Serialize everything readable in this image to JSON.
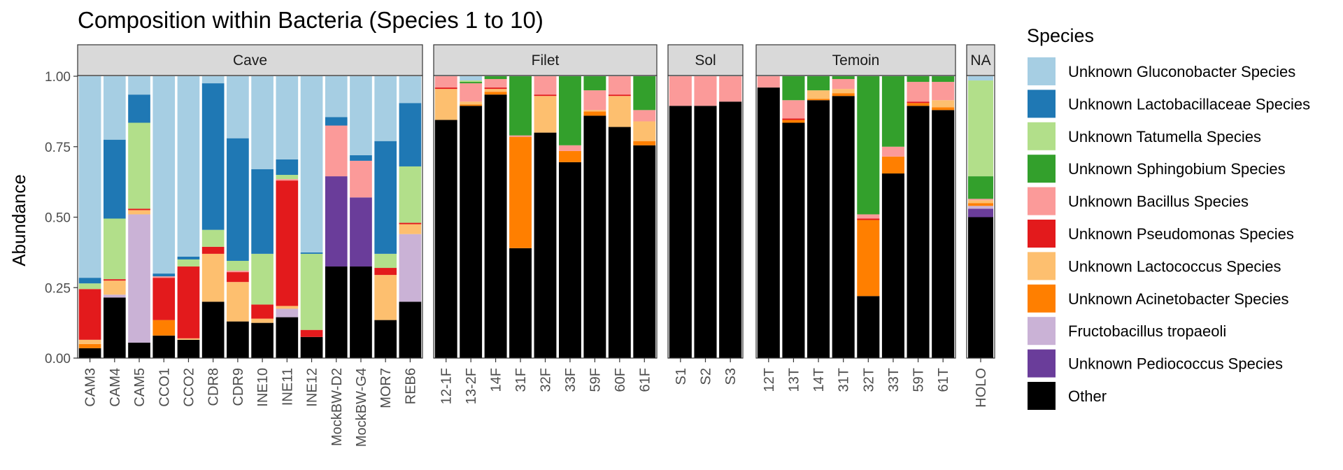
{
  "chart_data": {
    "type": "bar",
    "stacked": true,
    "title": "Composition within Bacteria (Species 1 to 10)",
    "ylabel": "Abundance",
    "xlabel": "",
    "ylim": [
      0,
      1
    ],
    "yticks": [
      "0.00",
      "0.25",
      "0.50",
      "0.75",
      "1.00"
    ],
    "legend": {
      "title": "Species",
      "position": "right",
      "entries": [
        {
          "name": "Unknown Gluconobacter Species",
          "color": "#a6cee3"
        },
        {
          "name": "Unknown Lactobacillaceae Species",
          "color": "#1f78b4"
        },
        {
          "name": "Unknown Tatumella Species",
          "color": "#b2df8a"
        },
        {
          "name": "Unknown Sphingobium Species",
          "color": "#33a02c"
        },
        {
          "name": "Unknown Bacillus Species",
          "color": "#fb9a99"
        },
        {
          "name": "Unknown Pseudomonas Species",
          "color": "#e31a1c"
        },
        {
          "name": "Unknown Lactococcus Species",
          "color": "#fdbf6f"
        },
        {
          "name": "Unknown Acinetobacter Species",
          "color": "#ff7f00"
        },
        {
          "name": "Fructobacillus tropaeoli",
          "color": "#cab2d6"
        },
        {
          "name": "Unknown Pediococcus Species",
          "color": "#6a3d9a"
        },
        {
          "name": "Other",
          "color": "#000000"
        }
      ]
    },
    "stack_order_bottom_to_top": [
      "Other",
      "Unknown Pediococcus Species",
      "Fructobacillus tropaeoli",
      "Unknown Acinetobacter Species",
      "Unknown Lactococcus Species",
      "Unknown Pseudomonas Species",
      "Unknown Bacillus Species",
      "Unknown Sphingobium Species",
      "Unknown Tatumella Species",
      "Unknown Lactobacillaceae Species",
      "Unknown Gluconobacter Species"
    ],
    "panels": [
      {
        "name": "Cave",
        "samples": [
          {
            "label": "CAM3",
            "values": {
              "Other": 0.035,
              "Unknown Lactococcus Species": 0.015,
              "Unknown Acinetobacter Species": 0.015,
              "Unknown Pseudomonas Species": 0.18,
              "Unknown Tatumella Species": 0.02,
              "Unknown Lactobacillaceae Species": 0.02,
              "Unknown Gluconobacter Species": 0.715
            }
          },
          {
            "label": "CAM4",
            "values": {
              "Other": 0.215,
              "Fructobacillus tropaeoli": 0.01,
              "Unknown Lactococcus Species": 0.05,
              "Unknown Pseudomonas Species": 0.005,
              "Unknown Tatumella Species": 0.215,
              "Unknown Lactobacillaceae Species": 0.28,
              "Unknown Gluconobacter Species": 0.225
            }
          },
          {
            "label": "CAM5",
            "values": {
              "Other": 0.055,
              "Fructobacillus tropaeoli": 0.455,
              "Unknown Lactococcus Species": 0.015,
              "Unknown Pseudomonas Species": 0.005,
              "Unknown Tatumella Species": 0.305,
              "Unknown Lactobacillaceae Species": 0.1,
              "Unknown Gluconobacter Species": 0.065
            }
          },
          {
            "label": "CCO1",
            "values": {
              "Other": 0.08,
              "Unknown Acinetobacter Species": 0.055,
              "Unknown Pseudomonas Species": 0.15,
              "Unknown Bacillus Species": 0.005,
              "Unknown Lactobacillaceae Species": 0.01,
              "Unknown Gluconobacter Species": 0.7
            }
          },
          {
            "label": "CCO2",
            "values": {
              "Other": 0.065,
              "Unknown Lactococcus Species": 0.005,
              "Unknown Pseudomonas Species": 0.255,
              "Unknown Tatumella Species": 0.025,
              "Unknown Lactobacillaceae Species": 0.01,
              "Unknown Gluconobacter Species": 0.64
            }
          },
          {
            "label": "CDR8",
            "values": {
              "Other": 0.2,
              "Unknown Lactococcus Species": 0.17,
              "Unknown Pseudomonas Species": 0.025,
              "Unknown Tatumella Species": 0.06,
              "Unknown Lactobacillaceae Species": 0.52,
              "Unknown Gluconobacter Species": 0.025
            }
          },
          {
            "label": "CDR9",
            "values": {
              "Other": 0.13,
              "Unknown Lactococcus Species": 0.14,
              "Unknown Pseudomonas Species": 0.035,
              "Unknown Bacillus Species": 0.005,
              "Unknown Tatumella Species": 0.035,
              "Unknown Lactobacillaceae Species": 0.435,
              "Unknown Gluconobacter Species": 0.22
            }
          },
          {
            "label": "INE10",
            "values": {
              "Other": 0.125,
              "Unknown Lactococcus Species": 0.015,
              "Unknown Pseudomonas Species": 0.05,
              "Unknown Tatumella Species": 0.18,
              "Unknown Lactobacillaceae Species": 0.3,
              "Unknown Gluconobacter Species": 0.33
            }
          },
          {
            "label": "INE11",
            "values": {
              "Other": 0.145,
              "Fructobacillus tropaeoli": 0.03,
              "Unknown Lactococcus Species": 0.01,
              "Unknown Pseudomonas Species": 0.445,
              "Unknown Bacillus Species": 0.005,
              "Unknown Tatumella Species": 0.015,
              "Unknown Lactobacillaceae Species": 0.055,
              "Unknown Gluconobacter Species": 0.295
            }
          },
          {
            "label": "INE12",
            "values": {
              "Other": 0.075,
              "Unknown Pseudomonas Species": 0.025,
              "Unknown Tatumella Species": 0.27,
              "Unknown Lactobacillaceae Species": 0.005,
              "Unknown Gluconobacter Species": 0.625
            }
          },
          {
            "label": "MockBW-D2",
            "values": {
              "Other": 0.325,
              "Unknown Pediococcus Species": 0.32,
              "Unknown Bacillus Species": 0.18,
              "Unknown Lactobacillaceae Species": 0.03,
              "Unknown Gluconobacter Species": 0.145
            }
          },
          {
            "label": "MockBW-G4",
            "values": {
              "Other": 0.325,
              "Unknown Pediococcus Species": 0.245,
              "Unknown Bacillus Species": 0.13,
              "Unknown Lactobacillaceae Species": 0.02,
              "Unknown Gluconobacter Species": 0.28
            }
          },
          {
            "label": "MOR7",
            "values": {
              "Other": 0.135,
              "Unknown Lactococcus Species": 0.16,
              "Unknown Pseudomonas Species": 0.025,
              "Unknown Tatumella Species": 0.05,
              "Unknown Lactobacillaceae Species": 0.4,
              "Unknown Gluconobacter Species": 0.23
            }
          },
          {
            "label": "REB6",
            "values": {
              "Other": 0.2,
              "Fructobacillus tropaeoli": 0.24,
              "Unknown Lactococcus Species": 0.035,
              "Unknown Pseudomonas Species": 0.005,
              "Unknown Tatumella Species": 0.2,
              "Unknown Lactobacillaceae Species": 0.225,
              "Unknown Gluconobacter Species": 0.095
            }
          }
        ]
      },
      {
        "name": "Filet",
        "samples": [
          {
            "label": "12-1F",
            "values": {
              "Other": 0.845,
              "Unknown Lactococcus Species": 0.11,
              "Unknown Pseudomonas Species": 0.005,
              "Unknown Bacillus Species": 0.04
            }
          },
          {
            "label": "13-2F",
            "values": {
              "Other": 0.895,
              "Unknown Acinetobacter Species": 0.005,
              "Unknown Lactococcus Species": 0.01,
              "Unknown Bacillus Species": 0.065,
              "Unknown Sphingobium Species": 0.005,
              "Unknown Tatumella Species": 0.005,
              "Unknown Gluconobacter Species": 0.015
            }
          },
          {
            "label": "14F",
            "values": {
              "Other": 0.935,
              "Unknown Acinetobacter Species": 0.01,
              "Unknown Lactococcus Species": 0.01,
              "Unknown Pseudomonas Species": 0.005,
              "Unknown Bacillus Species": 0.03,
              "Unknown Sphingobium Species": 0.01
            }
          },
          {
            "label": "31F",
            "values": {
              "Other": 0.39,
              "Unknown Acinetobacter Species": 0.395,
              "Unknown Bacillus Species": 0.005,
              "Unknown Sphingobium Species": 0.21
            }
          },
          {
            "label": "32F",
            "values": {
              "Other": 0.8,
              "Unknown Lactococcus Species": 0.13,
              "Unknown Pseudomonas Species": 0.005,
              "Unknown Bacillus Species": 0.065
            }
          },
          {
            "label": "33F",
            "values": {
              "Other": 0.695,
              "Unknown Acinetobacter Species": 0.04,
              "Unknown Bacillus Species": 0.02,
              "Unknown Sphingobium Species": 0.245
            }
          },
          {
            "label": "59F",
            "values": {
              "Other": 0.86,
              "Unknown Acinetobacter Species": 0.015,
              "Unknown Lactococcus Species": 0.005,
              "Unknown Bacillus Species": 0.07,
              "Unknown Sphingobium Species": 0.05
            }
          },
          {
            "label": "60F",
            "values": {
              "Other": 0.82,
              "Unknown Lactococcus Species": 0.11,
              "Unknown Pseudomonas Species": 0.005,
              "Unknown Bacillus Species": 0.065
            }
          },
          {
            "label": "61F",
            "values": {
              "Other": 0.755,
              "Unknown Acinetobacter Species": 0.015,
              "Unknown Lactococcus Species": 0.07,
              "Unknown Bacillus Species": 0.04,
              "Unknown Sphingobium Species": 0.12
            }
          }
        ]
      },
      {
        "name": "Sol",
        "samples": [
          {
            "label": "S1",
            "values": {
              "Other": 0.895,
              "Unknown Bacillus Species": 0.105
            }
          },
          {
            "label": "S2",
            "values": {
              "Other": 0.895,
              "Unknown Bacillus Species": 0.105
            }
          },
          {
            "label": "S3",
            "values": {
              "Other": 0.91,
              "Unknown Bacillus Species": 0.09
            }
          }
        ]
      },
      {
        "name": "Temoin",
        "samples": [
          {
            "label": "12T",
            "values": {
              "Other": 0.96,
              "Unknown Bacillus Species": 0.04
            }
          },
          {
            "label": "13T",
            "values": {
              "Other": 0.835,
              "Unknown Acinetobacter Species": 0.01,
              "Unknown Pseudomonas Species": 0.005,
              "Unknown Bacillus Species": 0.065,
              "Unknown Sphingobium Species": 0.085
            }
          },
          {
            "label": "14T",
            "values": {
              "Other": 0.915,
              "Unknown Acinetobacter Species": 0.005,
              "Unknown Lactococcus Species": 0.03,
              "Unknown Sphingobium Species": 0.05
            }
          },
          {
            "label": "31T",
            "values": {
              "Other": 0.93,
              "Unknown Acinetobacter Species": 0.01,
              "Unknown Lactococcus Species": 0.015,
              "Unknown Bacillus Species": 0.035,
              "Unknown Sphingobium Species": 0.01
            }
          },
          {
            "label": "32T",
            "values": {
              "Other": 0.22,
              "Unknown Acinetobacter Species": 0.27,
              "Unknown Pseudomonas Species": 0.005,
              "Unknown Bacillus Species": 0.015,
              "Unknown Sphingobium Species": 0.49
            }
          },
          {
            "label": "33T",
            "values": {
              "Other": 0.655,
              "Unknown Acinetobacter Species": 0.06,
              "Unknown Bacillus Species": 0.035,
              "Unknown Sphingobium Species": 0.25
            }
          },
          {
            "label": "59T",
            "values": {
              "Other": 0.895,
              "Unknown Acinetobacter Species": 0.01,
              "Unknown Pseudomonas Species": 0.005,
              "Unknown Bacillus Species": 0.07,
              "Unknown Sphingobium Species": 0.02
            }
          },
          {
            "label": "61T",
            "values": {
              "Other": 0.88,
              "Unknown Acinetobacter Species": 0.01,
              "Unknown Lactococcus Species": 0.025,
              "Unknown Bacillus Species": 0.065,
              "Unknown Sphingobium Species": 0.02
            }
          }
        ]
      },
      {
        "name": "NA",
        "samples": [
          {
            "label": "HOLO",
            "values": {
              "Other": 0.5,
              "Unknown Pediococcus Species": 0.03,
              "Fructobacillus tropaeoli": 0.01,
              "Unknown Lactococcus Species": 0.01,
              "Unknown Acinetobacter Species": 0.01,
              "Unknown Bacillus Species": 0.005,
              "Unknown Sphingobium Species": 0.08,
              "Unknown Tatumella Species": 0.34,
              "Unknown Gluconobacter Species": 0.015
            }
          }
        ]
      }
    ]
  }
}
